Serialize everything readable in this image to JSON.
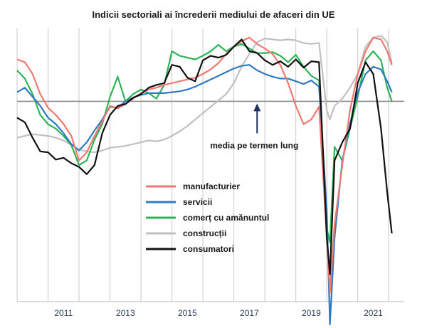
{
  "chart_data": {
    "type": "line",
    "title": "Indicii sectoriali ai încrederii mediului de afaceri din UE",
    "xlabel": "",
    "ylabel": "",
    "x_ticks": [
      "2011",
      "2013",
      "2015",
      "2017",
      "2019",
      "2021"
    ],
    "x_range": [
      2010,
      2022.5
    ],
    "y_range": [
      -22,
      8
    ],
    "baseline_value": 0,
    "vertical_grid": true,
    "horizontal_grid": false,
    "legend_position": "center-left",
    "annotation": {
      "text": "media pe termen lung",
      "x": 2017.75
    },
    "series": [
      {
        "name": "manufacturier",
        "color": "#f07870",
        "x": [
          2010.0,
          2010.25,
          2010.5,
          2010.75,
          2011.0,
          2011.25,
          2011.5,
          2011.75,
          2012.0,
          2012.25,
          2012.5,
          2012.75,
          2013.0,
          2013.25,
          2013.5,
          2013.75,
          2014.0,
          2014.25,
          2014.5,
          2014.75,
          2015.0,
          2015.25,
          2015.5,
          2015.75,
          2016.0,
          2016.25,
          2016.5,
          2016.75,
          2017.0,
          2017.25,
          2017.5,
          2017.75,
          2018.0,
          2018.25,
          2018.5,
          2018.75,
          2019.0,
          2019.25,
          2019.5,
          2019.75,
          2020.0,
          2020.1,
          2020.25,
          2020.5,
          2020.75,
          2021.0,
          2021.25,
          2021.5,
          2021.75,
          2021.95,
          2022.1
        ],
        "values": [
          4.6,
          4.3,
          3.0,
          0.8,
          -0.7,
          -1.5,
          -2.5,
          -3.8,
          -6.5,
          -5.6,
          -3.8,
          -2.2,
          -0.5,
          -0.8,
          -0.3,
          0.3,
          0.9,
          1.3,
          1.5,
          1.8,
          2.0,
          2.2,
          2.4,
          2.6,
          3.0,
          3.5,
          4.2,
          5.2,
          6.0,
          6.6,
          7.0,
          6.3,
          5.8,
          5.2,
          4.0,
          2.0,
          -0.5,
          -2.5,
          -2.0,
          -0.6,
          -15.0,
          -21.0,
          -13.5,
          -7.0,
          -1.0,
          3.0,
          5.5,
          7.0,
          6.8,
          5.5,
          4.0
        ]
      },
      {
        "name": "servicii",
        "color": "#2f7ac0",
        "x": [
          2010.0,
          2010.25,
          2010.5,
          2010.75,
          2011.0,
          2011.25,
          2011.5,
          2011.75,
          2012.0,
          2012.25,
          2012.5,
          2012.75,
          2013.0,
          2013.25,
          2013.5,
          2013.75,
          2014.0,
          2014.25,
          2014.5,
          2014.75,
          2015.0,
          2015.25,
          2015.5,
          2015.75,
          2016.0,
          2016.25,
          2016.5,
          2016.75,
          2017.0,
          2017.25,
          2017.5,
          2017.75,
          2018.0,
          2018.25,
          2018.5,
          2018.75,
          2019.0,
          2019.25,
          2019.5,
          2019.75,
          2020.0,
          2020.1,
          2020.25,
          2020.5,
          2020.75,
          2021.0,
          2021.25,
          2021.5,
          2021.75,
          2021.95,
          2022.1
        ],
        "values": [
          1.0,
          1.5,
          0.5,
          -0.5,
          -1.8,
          -2.5,
          -3.5,
          -4.7,
          -5.4,
          -4.5,
          -3.2,
          -2.0,
          -0.6,
          -0.7,
          0.0,
          0.4,
          0.7,
          0.9,
          0.9,
          0.9,
          1.0,
          1.1,
          1.3,
          1.6,
          2.0,
          2.4,
          2.8,
          3.2,
          3.6,
          3.9,
          4.0,
          3.4,
          3.0,
          2.7,
          2.5,
          2.5,
          2.2,
          1.9,
          2.3,
          1.6,
          -12.0,
          -24.5,
          -15.0,
          -6.5,
          -2.5,
          1.0,
          3.0,
          3.8,
          3.5,
          2.2,
          1.0
        ]
      },
      {
        "name": "comerț cu amănuntul",
        "color": "#2bb557",
        "x": [
          2010.0,
          2010.25,
          2010.5,
          2010.75,
          2011.0,
          2011.25,
          2011.5,
          2011.75,
          2012.0,
          2012.25,
          2012.5,
          2012.75,
          2013.0,
          2013.25,
          2013.5,
          2013.75,
          2014.0,
          2014.25,
          2014.5,
          2014.75,
          2015.0,
          2015.25,
          2015.5,
          2015.75,
          2016.0,
          2016.25,
          2016.5,
          2016.75,
          2017.0,
          2017.25,
          2017.5,
          2017.75,
          2018.0,
          2018.25,
          2018.5,
          2018.75,
          2019.0,
          2019.25,
          2019.5,
          2019.75,
          2020.0,
          2020.1,
          2020.25,
          2020.5,
          2020.75,
          2021.0,
          2021.25,
          2021.5,
          2021.75,
          2021.95,
          2022.1
        ],
        "values": [
          3.4,
          2.5,
          0.8,
          -1.5,
          -2.5,
          -3.0,
          -3.8,
          -4.8,
          -7.0,
          -6.5,
          -4.2,
          -2.5,
          0.5,
          2.7,
          0.0,
          0.8,
          1.3,
          0.9,
          0.3,
          1.8,
          5.5,
          5.0,
          4.8,
          4.6,
          5.0,
          5.5,
          6.2,
          5.5,
          6.0,
          6.3,
          5.8,
          5.3,
          5.3,
          5.4,
          5.0,
          4.3,
          5.1,
          3.8,
          2.8,
          2.3,
          -14.0,
          -15.5,
          -5.0,
          -6.5,
          -3.0,
          0.5,
          4.5,
          5.5,
          4.5,
          1.5,
          0.0
        ]
      },
      {
        "name": "construcții",
        "color": "#c0c0c0",
        "x": [
          2010.0,
          2010.25,
          2010.5,
          2010.75,
          2011.0,
          2011.25,
          2011.5,
          2011.75,
          2012.0,
          2012.25,
          2012.5,
          2012.75,
          2013.0,
          2013.25,
          2013.5,
          2013.75,
          2014.0,
          2014.25,
          2014.5,
          2014.75,
          2015.0,
          2015.25,
          2015.5,
          2015.75,
          2016.0,
          2016.25,
          2016.5,
          2016.75,
          2017.0,
          2017.25,
          2017.5,
          2017.75,
          2018.0,
          2018.25,
          2018.5,
          2018.75,
          2019.0,
          2019.25,
          2019.5,
          2019.75,
          2020.0,
          2020.1,
          2020.25,
          2020.5,
          2020.75,
          2021.0,
          2021.25,
          2021.5,
          2021.75,
          2021.95,
          2022.1
        ],
        "values": [
          -4.0,
          -3.8,
          -3.6,
          -3.7,
          -3.8,
          -4.0,
          -4.3,
          -4.8,
          -5.3,
          -5.5,
          -5.6,
          -5.4,
          -5.1,
          -5.0,
          -4.9,
          -4.7,
          -4.5,
          -4.3,
          -4.4,
          -4.2,
          -3.8,
          -3.3,
          -2.7,
          -2.0,
          -1.3,
          -0.6,
          0.1,
          0.8,
          2.0,
          3.8,
          5.2,
          6.5,
          6.9,
          6.8,
          6.7,
          6.8,
          6.7,
          6.4,
          6.3,
          6.4,
          -1.0,
          -2.0,
          -0.5,
          0.3,
          1.5,
          3.0,
          6.0,
          7.0,
          7.2,
          6.5,
          4.2
        ]
      },
      {
        "name": "consumatori",
        "color": "#111111",
        "x": [
          2010.0,
          2010.25,
          2010.5,
          2010.75,
          2011.0,
          2011.25,
          2011.5,
          2011.75,
          2012.0,
          2012.25,
          2012.5,
          2012.75,
          2013.0,
          2013.25,
          2013.5,
          2013.75,
          2014.0,
          2014.25,
          2014.5,
          2014.75,
          2015.0,
          2015.25,
          2015.5,
          2015.75,
          2016.0,
          2016.25,
          2016.5,
          2016.75,
          2017.0,
          2017.25,
          2017.5,
          2017.75,
          2018.0,
          2018.25,
          2018.5,
          2018.75,
          2019.0,
          2019.25,
          2019.5,
          2019.75,
          2020.0,
          2020.1,
          2020.25,
          2020.5,
          2020.75,
          2021.0,
          2021.25,
          2021.5,
          2021.75,
          2021.95,
          2022.1
        ],
        "values": [
          -1.8,
          -2.3,
          -4.0,
          -5.5,
          -5.6,
          -6.4,
          -6.2,
          -6.8,
          -7.2,
          -8.0,
          -7.0,
          -3.5,
          -1.5,
          -0.5,
          -0.3,
          0.4,
          0.8,
          1.5,
          1.8,
          2.0,
          4.0,
          3.8,
          2.6,
          2.2,
          4.5,
          5.0,
          4.8,
          5.1,
          6.0,
          6.8,
          5.5,
          5.3,
          4.5,
          4.0,
          4.4,
          3.8,
          4.6,
          3.7,
          4.4,
          4.3,
          -15.0,
          -19.0,
          -6.5,
          -4.5,
          -3.0,
          2.0,
          4.3,
          3.0,
          -3.0,
          -10.0,
          -14.5
        ]
      }
    ]
  }
}
